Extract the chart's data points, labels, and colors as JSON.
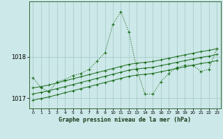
{
  "title": "Graphe pression niveau de la mer (hPa)",
  "background_color": "#cce8e8",
  "grid_color": "#aacccc",
  "line_color": "#1a6b1a",
  "ylim": [
    1016.75,
    1019.35
  ],
  "yticks": [
    1017,
    1018
  ],
  "xlim": [
    -0.5,
    23.5
  ],
  "xticks": [
    0,
    1,
    2,
    3,
    4,
    5,
    6,
    7,
    8,
    9,
    10,
    11,
    12,
    13,
    14,
    15,
    16,
    17,
    18,
    19,
    20,
    21,
    22,
    23
  ],
  "series_dotted": [
    1017.5,
    1017.25,
    1017.15,
    1017.4,
    1017.45,
    1017.55,
    1017.6,
    1017.7,
    1017.9,
    1018.1,
    1018.8,
    1019.1,
    1018.6,
    1017.7,
    1017.1,
    1017.1,
    1017.4,
    1017.6,
    1017.75,
    1017.8,
    1017.8,
    1017.65,
    1017.7,
    1018.2
  ],
  "series_solid1": [
    1017.25,
    1017.28,
    1017.32,
    1017.37,
    1017.42,
    1017.47,
    1017.52,
    1017.57,
    1017.62,
    1017.67,
    1017.72,
    1017.77,
    1017.82,
    1017.85,
    1017.87,
    1017.89,
    1017.93,
    1017.97,
    1018.01,
    1018.05,
    1018.09,
    1018.13,
    1018.16,
    1018.2
  ],
  "series_solid2": [
    1017.1,
    1017.14,
    1017.18,
    1017.23,
    1017.28,
    1017.33,
    1017.38,
    1017.43,
    1017.48,
    1017.53,
    1017.58,
    1017.63,
    1017.68,
    1017.71,
    1017.73,
    1017.75,
    1017.79,
    1017.83,
    1017.87,
    1017.91,
    1017.95,
    1017.99,
    1018.02,
    1018.06
  ],
  "series_solid3": [
    1016.95,
    1016.99,
    1017.03,
    1017.08,
    1017.13,
    1017.18,
    1017.23,
    1017.28,
    1017.33,
    1017.38,
    1017.43,
    1017.48,
    1017.53,
    1017.56,
    1017.58,
    1017.6,
    1017.64,
    1017.68,
    1017.72,
    1017.76,
    1017.8,
    1017.84,
    1017.87,
    1017.91
  ]
}
